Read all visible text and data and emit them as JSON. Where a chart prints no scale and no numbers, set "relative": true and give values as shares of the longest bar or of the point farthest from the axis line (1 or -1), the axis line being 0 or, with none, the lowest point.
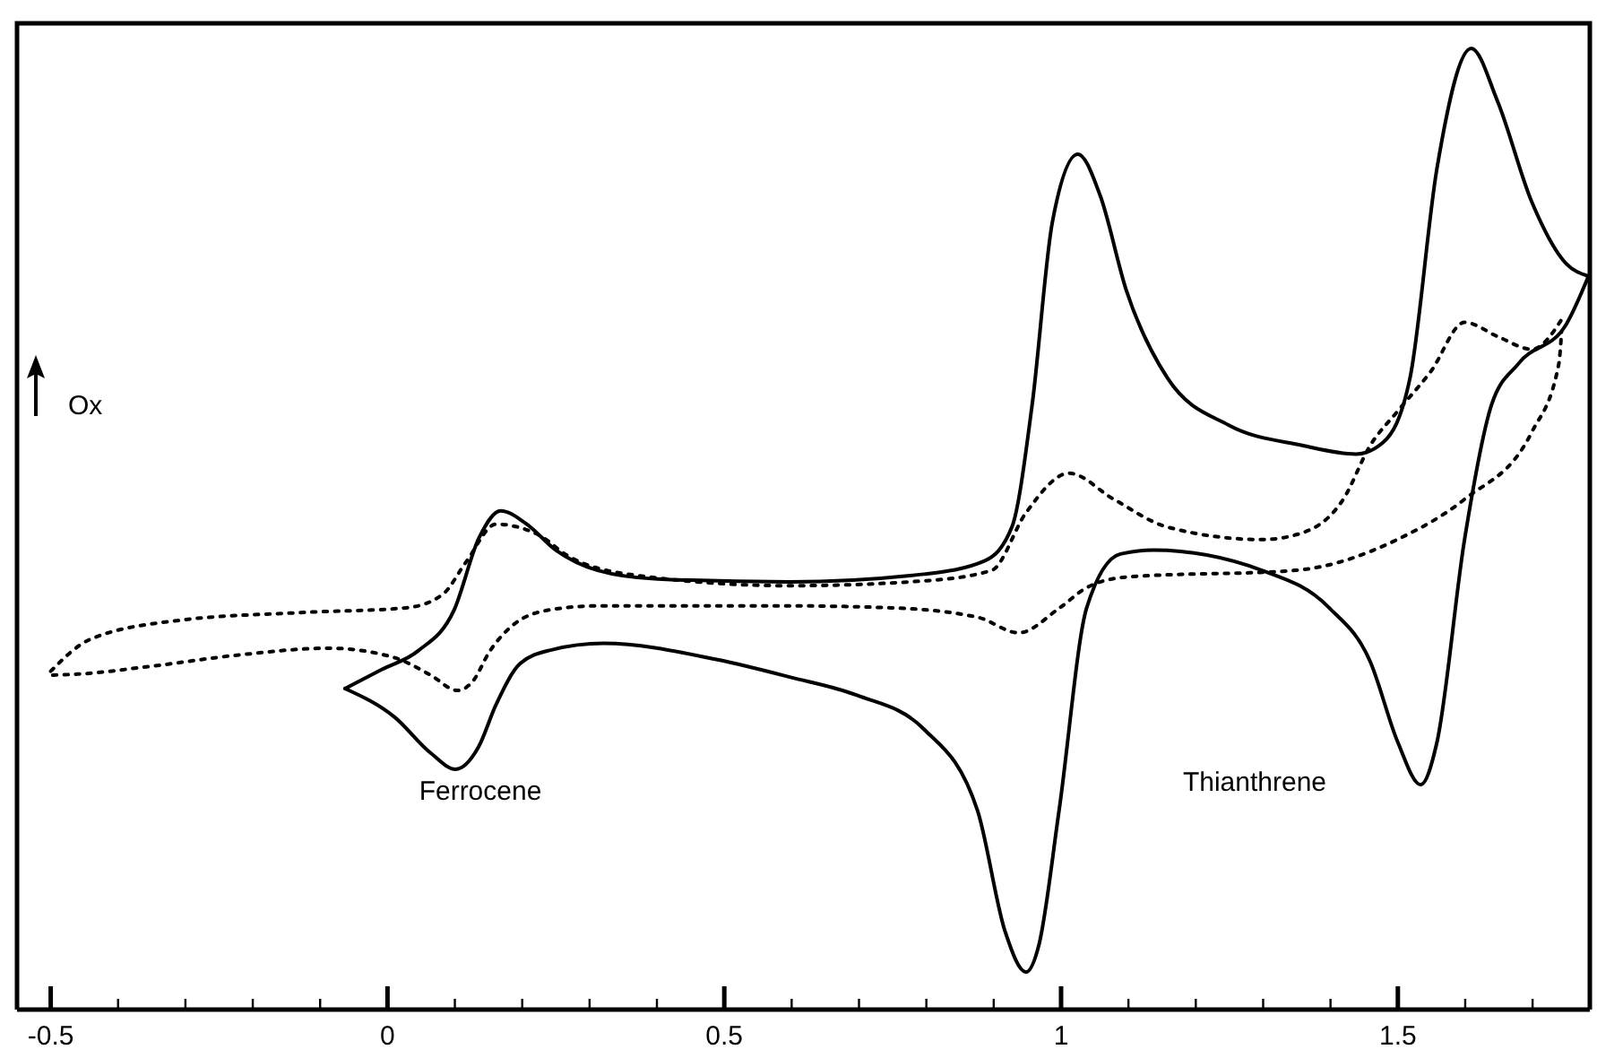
{
  "chart_data": {
    "type": "line",
    "relative": true,
    "grid": false,
    "xlim": [
      -0.55,
      1.785
    ],
    "xticks": [
      -0.5,
      {
        "value": -0.4,
        "label": null
      },
      {
        "value": -0.3,
        "label": null
      },
      {
        "value": -0.2,
        "label": null
      },
      {
        "value": -0.1,
        "label": null
      },
      0,
      {
        "value": 0.1,
        "label": null
      },
      {
        "value": 0.2,
        "label": null
      },
      {
        "value": 0.3,
        "label": null
      },
      {
        "value": 0.4,
        "label": null
      },
      0.5,
      {
        "value": 0.6,
        "label": null
      },
      {
        "value": 0.7,
        "label": null
      },
      {
        "value": 0.8,
        "label": null
      },
      {
        "value": 0.9,
        "label": null
      },
      1,
      {
        "value": 1.1,
        "label": null
      },
      {
        "value": 1.2,
        "label": null
      },
      {
        "value": 1.3,
        "label": null
      },
      {
        "value": 1.4,
        "label": null
      },
      1.5,
      {
        "value": 1.6,
        "label": null
      },
      {
        "value": 1.7,
        "label": null
      }
    ],
    "tick_labels": "x",
    "series": [
      {
        "color": "#000000",
        "line_style": "solid",
        "x": [
          -0.063,
          -0.008,
          0.045,
          0.099,
          0.136,
          0.168,
          0.205,
          0.25,
          0.312,
          0.401,
          0.597,
          0.796,
          0.887,
          0.927,
          0.957,
          0.987,
          1.025,
          1.058,
          1.097,
          1.158,
          1.249,
          1.358,
          1.438,
          1.478,
          1.518,
          1.558,
          1.609,
          1.648,
          1.699,
          1.75,
          1.783
        ],
        "values": [
          0.334,
          0.354,
          0.373,
          0.416,
          0.491,
          0.519,
          0.506,
          0.478,
          0.457,
          0.448,
          0.445,
          0.453,
          0.467,
          0.502,
          0.629,
          0.819,
          0.89,
          0.847,
          0.748,
          0.657,
          0.608,
          0.587,
          0.578,
          0.59,
          0.657,
          0.875,
          1.0,
          0.945,
          0.84,
          0.776,
          0.763
        ]
      },
      {
        "color": "#000000",
        "line_style": "solid",
        "x": [
          -0.063,
          0.011,
          0.064,
          0.101,
          0.135,
          0.161,
          0.197,
          0.242,
          0.321,
          0.49,
          0.597,
          0.697,
          0.796,
          0.876,
          0.917,
          0.948,
          0.967,
          0.997,
          1.038,
          1.088,
          1.137,
          1.298,
          1.398,
          1.459,
          1.5,
          1.534,
          1.558,
          1.599,
          1.639,
          1.679,
          1.75,
          1.783
        ],
        "values": [
          0.334,
          0.304,
          0.267,
          0.25,
          0.273,
          0.317,
          0.36,
          0.374,
          0.381,
          0.364,
          0.346,
          0.327,
          0.292,
          0.207,
          0.081,
          0.039,
          0.067,
          0.207,
          0.418,
          0.474,
          0.478,
          0.457,
          0.418,
          0.362,
          0.278,
          0.234,
          0.278,
          0.489,
          0.629,
          0.672,
          0.713,
          0.763
        ]
      },
      {
        "color": "#000000",
        "line_style": "dotted",
        "x": [
          -0.5,
          -0.442,
          -0.309,
          -0.131,
          0.028,
          0.082,
          0.117,
          0.161,
          0.224,
          0.268,
          0.357,
          0.597,
          0.796,
          0.897,
          0.948,
          1.012,
          1.078,
          1.158,
          1.298,
          1.358,
          1.419,
          1.459,
          1.499,
          1.549,
          1.599,
          1.649,
          1.699,
          1.745
        ],
        "values": [
          0.352,
          0.385,
          0.405,
          0.413,
          0.418,
          0.432,
          0.466,
          0.505,
          0.494,
          0.472,
          0.453,
          0.441,
          0.446,
          0.457,
          0.517,
          0.558,
          0.531,
          0.502,
          0.489,
          0.496,
          0.531,
          0.587,
          0.622,
          0.664,
          0.715,
          0.7,
          0.687,
          0.72
        ]
      },
      {
        "color": "#000000",
        "line_style": "dotted",
        "x": [
          -0.497,
          -0.46,
          -0.353,
          -0.22,
          -0.087,
          0.011,
          0.064,
          0.104,
          0.126,
          0.152,
          0.188,
          0.242,
          0.312,
          0.597,
          0.747,
          0.877,
          0.937,
          0.998,
          1.038,
          1.097,
          1.348,
          1.499,
          1.599,
          1.699,
          1.739,
          1.743
        ],
        "values": [
          0.348,
          0.349,
          0.357,
          0.369,
          0.376,
          0.366,
          0.348,
          0.332,
          0.341,
          0.373,
          0.401,
          0.416,
          0.42,
          0.42,
          0.418,
          0.408,
          0.392,
          0.418,
          0.439,
          0.45,
          0.457,
          0.489,
          0.531,
          0.601,
          0.672,
          0.705
        ]
      }
    ],
    "annotations": [
      "Ferrocene",
      "Thianthrene",
      "Ox"
    ]
  }
}
